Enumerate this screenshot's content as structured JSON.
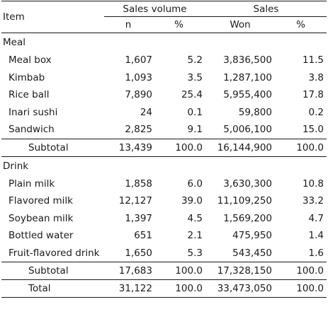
{
  "header": {
    "item": "Item",
    "sales_volume": "Sales volume",
    "sales": "Sales",
    "n": "n",
    "pct1": "%",
    "won": "Won",
    "pct2": "%"
  },
  "meal": {
    "label": "Meal",
    "rows": [
      {
        "item": "Meal box",
        "n": "1,607",
        "vp": "5.2",
        "won": "3,836,500",
        "sp": "11.5"
      },
      {
        "item": "Kimbab",
        "n": "1,093",
        "vp": "3.5",
        "won": "1,287,100",
        "sp": "3.8"
      },
      {
        "item": "Rice ball",
        "n": "7,890",
        "vp": "25.4",
        "won": "5,955,400",
        "sp": "17.8"
      },
      {
        "item": "Inari sushi",
        "n": "24",
        "vp": "0.1",
        "won": "59,800",
        "sp": "0.2"
      },
      {
        "item": "Sandwich",
        "n": "2,825",
        "vp": "9.1",
        "won": "5,006,100",
        "sp": "15.0"
      }
    ],
    "subtotal": {
      "label": "Subtotal",
      "n": "13,439",
      "vp": "100.0",
      "won": "16,144,900",
      "sp": "100.0"
    }
  },
  "drink": {
    "label": "Drink",
    "rows": [
      {
        "item": "Plain milk",
        "n": "1,858",
        "vp": "6.0",
        "won": "3,630,300",
        "sp": "10.8"
      },
      {
        "item": "Flavored milk",
        "n": "12,127",
        "vp": "39.0",
        "won": "11,109,250",
        "sp": "33.2"
      },
      {
        "item": "Soybean milk",
        "n": "1,397",
        "vp": "4.5",
        "won": "1,569,200",
        "sp": "4.7"
      },
      {
        "item": "Bottled water",
        "n": "651",
        "vp": "2.1",
        "won": "475,950",
        "sp": "1.4"
      },
      {
        "item": "Fruit-flavored drink",
        "n": "1,650",
        "vp": "5.3",
        "won": "543,450",
        "sp": "1.6"
      }
    ],
    "subtotal": {
      "label": "Subtotal",
      "n": "17,683",
      "vp": "100.0",
      "won": "17,328,150",
      "sp": "100.0"
    }
  },
  "total": {
    "label": "Total",
    "n": "31,122",
    "vp": "100.0",
    "won": "33,473,050",
    "sp": "100.0"
  }
}
